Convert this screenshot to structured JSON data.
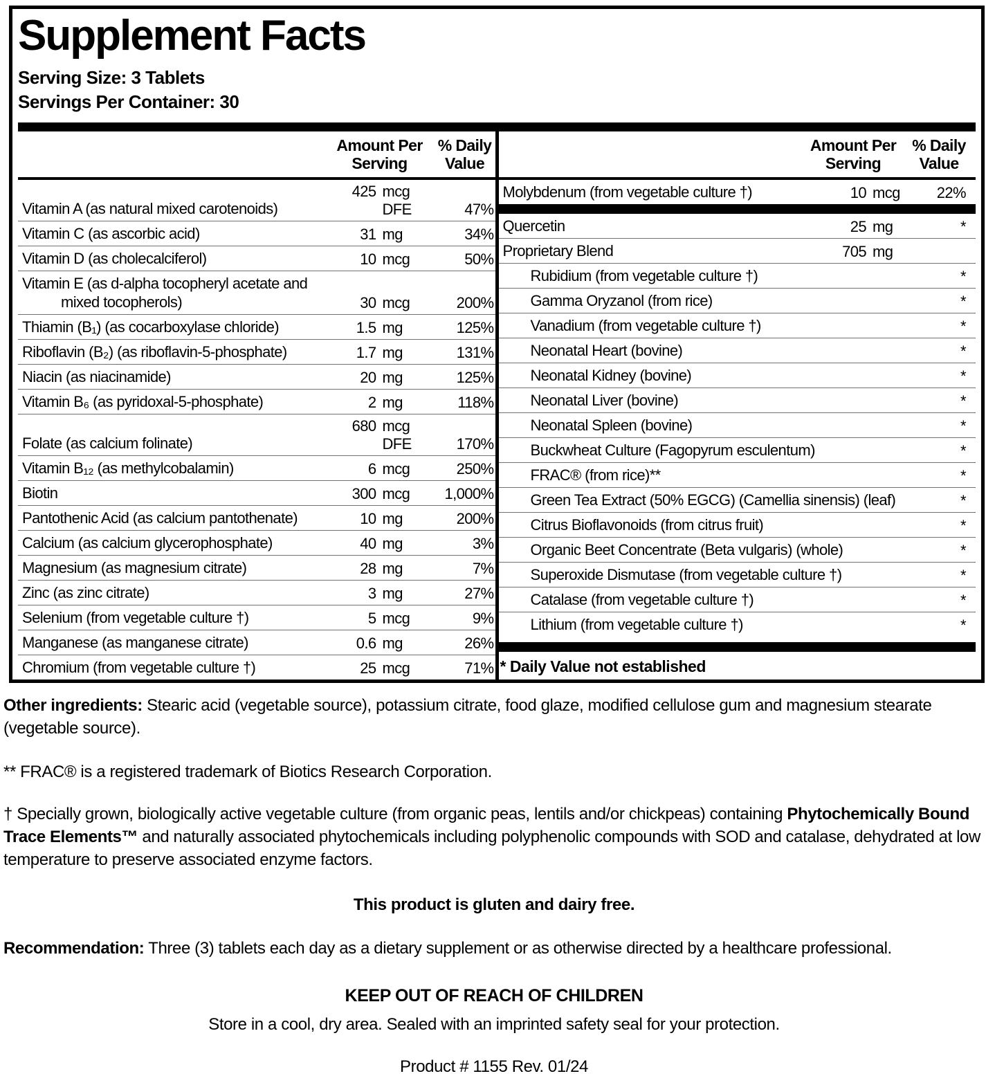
{
  "label": {
    "title": "Supplement Facts",
    "serving_size": "Serving Size: 3 Tablets",
    "servings_per_container": "Servings Per Container: 30"
  },
  "table": {
    "amount_header": "Amount Per Serving",
    "dv_header": "% Daily Value",
    "left_rows": [
      {
        "name": "Vitamin A (as natural mixed carotenoids)",
        "num": "425",
        "unit": "mcg DFE",
        "dv": "47%"
      },
      {
        "name": "Vitamin C (as ascorbic acid)",
        "num": "31",
        "unit": "mg",
        "dv": "34%"
      },
      {
        "name": "Vitamin D (as cholecalciferol)",
        "num": "10",
        "unit": "mcg",
        "dv": "50%"
      },
      {
        "name": "Vitamin E (as d-alpha tocopheryl acetate and mixed tocopherols)",
        "num": "30",
        "unit": "mcg",
        "dv": "200%"
      },
      {
        "name": "Thiamin (B₁) (as cocarboxylase chloride)",
        "num": "1.5",
        "unit": "mg",
        "dv": "125%"
      },
      {
        "name": "Riboflavin (B₂) (as riboflavin-5-phosphate)",
        "num": "1.7",
        "unit": "mg",
        "dv": "131%"
      },
      {
        "name": "Niacin (as niacinamide)",
        "num": "20",
        "unit": "mg",
        "dv": "125%"
      },
      {
        "name": "Vitamin B₆ (as pyridoxal-5-phosphate)",
        "num": "2",
        "unit": "mg",
        "dv": "118%"
      },
      {
        "name": "Folate (as calcium folinate)",
        "num": "680",
        "unit": "mcg DFE",
        "dv": "170%"
      },
      {
        "name": "Vitamin B₁₂ (as methylcobalamin)",
        "num": "6",
        "unit": "mcg",
        "dv": "250%"
      },
      {
        "name": "Biotin",
        "num": "300",
        "unit": "mcg",
        "dv": "1,000%"
      },
      {
        "name": "Pantothenic Acid (as calcium pantothenate)",
        "num": "10",
        "unit": "mg",
        "dv": "200%"
      },
      {
        "name": "Calcium (as calcium glycerophosphate)",
        "num": "40",
        "unit": "mg",
        "dv": "3%"
      },
      {
        "name": "Magnesium (as magnesium citrate)",
        "num": "28",
        "unit": "mg",
        "dv": "7%"
      },
      {
        "name": "Zinc (as zinc citrate)",
        "num": "3",
        "unit": "mg",
        "dv": "27%"
      },
      {
        "name": "Selenium (from vegetable culture †)",
        "num": "5",
        "unit": "mcg",
        "dv": "9%"
      },
      {
        "name": "Manganese (as manganese citrate)",
        "num": "0.6",
        "unit": "mg",
        "dv": "26%"
      },
      {
        "name": "Chromium (from vegetable culture †)",
        "num": "25",
        "unit": "mcg",
        "dv": "71%"
      }
    ],
    "right_top_rows": [
      {
        "name": "Molybdenum (from vegetable culture †)",
        "num": "10",
        "unit": "mcg",
        "dv": "22%"
      }
    ],
    "right_rows": [
      {
        "name": "Quercetin",
        "num": "25",
        "unit": "mg",
        "dv": "*"
      },
      {
        "name": "Proprietary Blend",
        "num": "705",
        "unit": "mg",
        "dv": ""
      },
      {
        "name": "Rubidium (from vegetable culture †)",
        "dv": "*",
        "indent": true
      },
      {
        "name": "Gamma Oryzanol (from rice)",
        "dv": "*",
        "indent": true
      },
      {
        "name": "Vanadium (from vegetable culture †)",
        "dv": "*",
        "indent": true
      },
      {
        "name": "Neonatal Heart (bovine)",
        "dv": "*",
        "indent": true
      },
      {
        "name": "Neonatal Kidney (bovine)",
        "dv": "*",
        "indent": true
      },
      {
        "name": "Neonatal Liver (bovine)",
        "dv": "*",
        "indent": true
      },
      {
        "name": "Neonatal Spleen (bovine)",
        "dv": "*",
        "indent": true
      },
      {
        "name": "Buckwheat Culture (Fagopyrum esculentum)",
        "dv": "*",
        "indent": true
      },
      {
        "name": "FRAC® (from rice)**",
        "dv": "*",
        "indent": true
      },
      {
        "name": "Green Tea Extract (50% EGCG) (Camellia sinensis) (leaf)",
        "dv": "*",
        "indent": true
      },
      {
        "name": "Citrus Bioflavonoids (from citrus fruit)",
        "dv": "*",
        "indent": true
      },
      {
        "name": "Organic Beet Concentrate (Beta vulgaris) (whole)",
        "dv": "*",
        "indent": true
      },
      {
        "name": "Superoxide Dismutase  (from vegetable culture †)",
        "dv": "*",
        "indent": true
      },
      {
        "name": "Catalase  (from vegetable culture †)",
        "dv": "*",
        "indent": true
      },
      {
        "name": "Lithium (from vegetable culture †)",
        "dv": "*",
        "indent": true
      }
    ],
    "dv_note": "* Daily Value not established"
  },
  "footer": {
    "other_ingredients_label": "Other ingredients:",
    "other_ingredients_text": " Stearic acid (vegetable source), potassium citrate, food glaze, modified cellulose gum and magnesium stearate (vegetable source).",
    "frac_note": "** FRAC® is a registered trademark of Biotics Research Corporation.",
    "dagger_pre": "† Specially grown, biologically active vegetable culture (from organic peas, lentils and/or chickpeas) containing ",
    "dagger_bold": "Phytochemically Bound Trace Elements™",
    "dagger_post": " and naturally associated phytochemicals including polyphenolic compounds with SOD and catalase, dehydrated at low temperature to preserve associated enzyme factors.",
    "gluten_free": "This product is gluten and dairy free.",
    "recommendation_label": "Recommendation:",
    "recommendation_text": " Three (3) tablets each day as a dietary supplement or as otherwise directed by a healthcare professional.",
    "keep_out": "KEEP OUT OF REACH OF CHILDREN",
    "storage": "Store in a cool, dry area. Sealed with an imprinted safety seal for your protection.",
    "product_code": "Product # 1155  Rev. 01/24"
  },
  "colors": {
    "text": "#000000",
    "rule_thin": "#6f6f6f",
    "rule_thick": "#000000",
    "background": "#ffffff"
  }
}
